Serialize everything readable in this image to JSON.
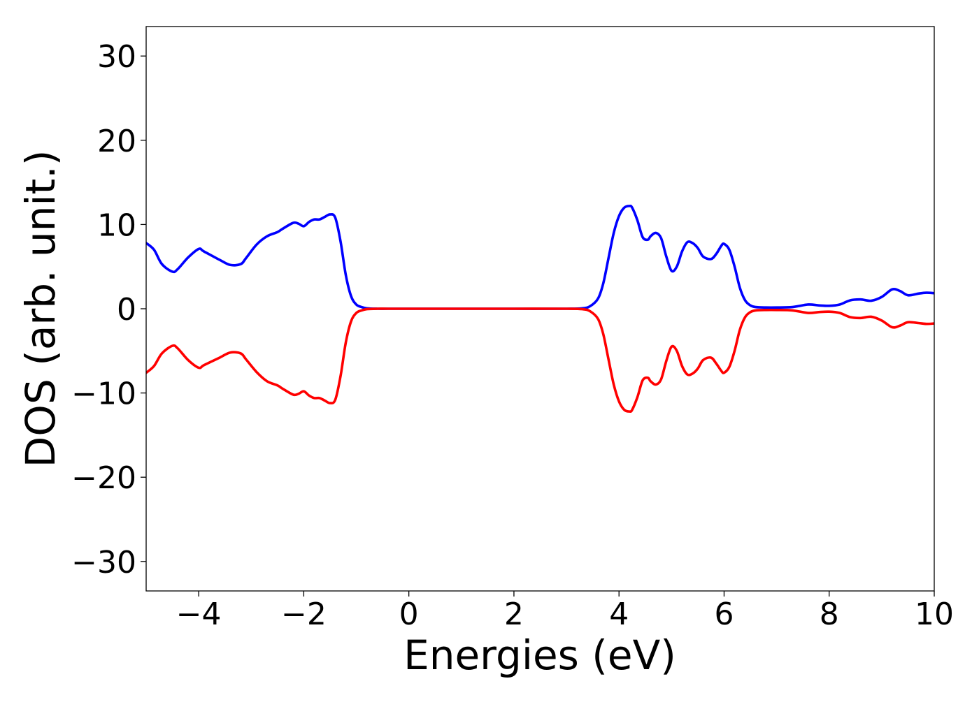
{
  "chart_data": {
    "type": "line",
    "title": "",
    "xlabel": "Energies (eV)",
    "ylabel": "DOS (arb. unit.)",
    "xlim": [
      -5,
      10
    ],
    "ylim": [
      -33.5,
      33.5
    ],
    "grid": false,
    "legend": "none",
    "x_ticks": [
      -4,
      -2,
      0,
      2,
      4,
      6,
      8,
      10
    ],
    "x_tick_labels": [
      "−4",
      "−2",
      "0",
      "2",
      "4",
      "6",
      "8",
      "10"
    ],
    "y_ticks": [
      30,
      20,
      10,
      0,
      -10,
      -20,
      -30
    ],
    "y_tick_labels": [
      "30",
      "20",
      "10",
      "0",
      "−10",
      "−20",
      "−30"
    ],
    "series": [
      {
        "color": "#0000ff",
        "x": [
          -5.0,
          -4.85,
          -4.7,
          -4.5,
          -4.4,
          -4.2,
          -4.0,
          -3.9,
          -3.6,
          -3.4,
          -3.2,
          -3.1,
          -2.9,
          -2.7,
          -2.5,
          -2.4,
          -2.2,
          -2.1,
          -2.0,
          -1.9,
          -1.8,
          -1.7,
          -1.6,
          -1.5,
          -1.4,
          -1.3,
          -1.2,
          -1.1,
          -1.0,
          -0.9,
          -0.8,
          -0.6,
          -0.4,
          0.0,
          1.0,
          2.0,
          3.0,
          3.3,
          3.45,
          3.6,
          3.7,
          3.8,
          3.9,
          4.0,
          4.1,
          4.2,
          4.25,
          4.35,
          4.45,
          4.55,
          4.6,
          4.7,
          4.8,
          4.9,
          5.0,
          5.1,
          5.2,
          5.3,
          5.4,
          5.5,
          5.6,
          5.75,
          5.85,
          5.95,
          6.0,
          6.1,
          6.2,
          6.3,
          6.4,
          6.5,
          6.6,
          6.8,
          7.0,
          7.3,
          7.6,
          7.8,
          8.0,
          8.2,
          8.4,
          8.6,
          8.8,
          9.0,
          9.2,
          9.35,
          9.5,
          9.7,
          9.85,
          10.0
        ],
        "y": [
          7.8,
          7.0,
          5.3,
          4.4,
          4.7,
          6.1,
          7.1,
          6.8,
          5.8,
          5.2,
          5.3,
          6.0,
          7.6,
          8.6,
          9.1,
          9.5,
          10.2,
          10.1,
          9.8,
          10.3,
          10.6,
          10.6,
          10.9,
          11.2,
          10.8,
          8.0,
          4.0,
          1.5,
          0.5,
          0.2,
          0.05,
          0.0,
          0.0,
          0.0,
          0.0,
          0.0,
          0.0,
          0.05,
          0.3,
          1.2,
          3.0,
          6.0,
          9.0,
          11.0,
          12.0,
          12.2,
          12.0,
          10.5,
          8.5,
          8.2,
          8.6,
          9.0,
          8.4,
          6.2,
          4.5,
          5.0,
          6.8,
          7.9,
          7.8,
          7.2,
          6.2,
          5.9,
          6.5,
          7.5,
          7.7,
          7.0,
          5.0,
          2.5,
          1.0,
          0.4,
          0.2,
          0.15,
          0.15,
          0.2,
          0.5,
          0.4,
          0.35,
          0.5,
          1.0,
          1.1,
          0.95,
          1.4,
          2.3,
          2.1,
          1.6,
          1.8,
          1.9,
          1.85
        ]
      },
      {
        "color": "#ff0000",
        "x": [
          -5.0,
          -4.85,
          -4.7,
          -4.5,
          -4.4,
          -4.2,
          -4.0,
          -3.9,
          -3.6,
          -3.4,
          -3.2,
          -3.1,
          -2.9,
          -2.7,
          -2.5,
          -2.4,
          -2.2,
          -2.1,
          -2.0,
          -1.9,
          -1.8,
          -1.7,
          -1.6,
          -1.5,
          -1.4,
          -1.3,
          -1.2,
          -1.1,
          -1.0,
          -0.9,
          -0.8,
          -0.6,
          -0.4,
          0.0,
          1.0,
          2.0,
          3.0,
          3.3,
          3.45,
          3.6,
          3.7,
          3.8,
          3.9,
          4.0,
          4.1,
          4.2,
          4.25,
          4.35,
          4.45,
          4.55,
          4.6,
          4.7,
          4.8,
          4.9,
          5.0,
          5.1,
          5.2,
          5.3,
          5.4,
          5.5,
          5.6,
          5.75,
          5.85,
          5.95,
          6.0,
          6.1,
          6.2,
          6.3,
          6.4,
          6.5,
          6.6,
          6.8,
          7.0,
          7.3,
          7.6,
          7.8,
          8.0,
          8.2,
          8.4,
          8.6,
          8.8,
          9.0,
          9.2,
          9.35,
          9.5,
          9.7,
          9.85,
          10.0
        ],
        "y": [
          -7.6,
          -6.8,
          -5.3,
          -4.4,
          -4.7,
          -6.1,
          -7.0,
          -6.7,
          -5.8,
          -5.2,
          -5.3,
          -6.0,
          -7.5,
          -8.6,
          -9.1,
          -9.5,
          -10.2,
          -10.1,
          -9.8,
          -10.3,
          -10.6,
          -10.6,
          -10.9,
          -11.2,
          -10.8,
          -8.0,
          -4.0,
          -1.5,
          -0.5,
          -0.2,
          -0.05,
          0.0,
          0.0,
          0.0,
          0.0,
          0.0,
          0.0,
          -0.05,
          -0.3,
          -1.2,
          -3.0,
          -6.0,
          -9.0,
          -11.0,
          -12.0,
          -12.2,
          -12.0,
          -10.5,
          -8.5,
          -8.2,
          -8.6,
          -9.0,
          -8.4,
          -6.2,
          -4.5,
          -5.0,
          -6.8,
          -7.8,
          -7.7,
          -7.1,
          -6.1,
          -5.8,
          -6.5,
          -7.4,
          -7.6,
          -6.9,
          -5.0,
          -2.5,
          -1.0,
          -0.4,
          -0.2,
          -0.15,
          -0.15,
          -0.2,
          -0.5,
          -0.4,
          -0.35,
          -0.5,
          -1.0,
          -1.1,
          -0.95,
          -1.4,
          -2.2,
          -2.0,
          -1.6,
          -1.7,
          -1.8,
          -1.75
        ]
      }
    ]
  }
}
